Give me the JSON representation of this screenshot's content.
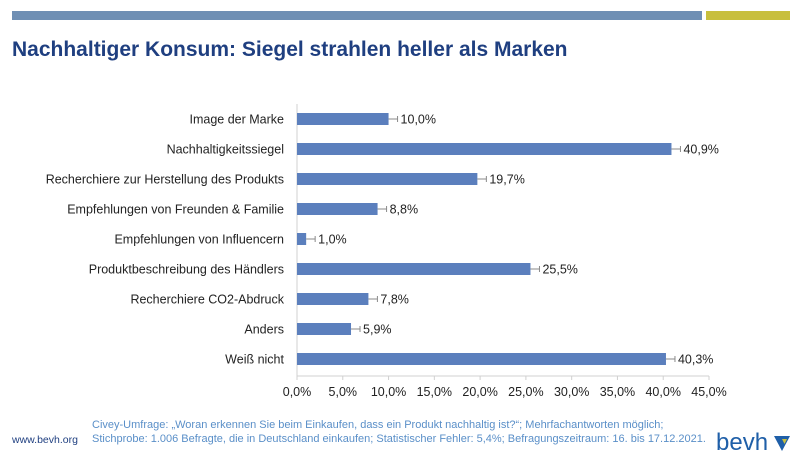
{
  "page": {
    "title": "Nachhaltiger Konsum: Siegel strahlen heller als Marken",
    "footnote_line1": "Civey-Umfrage: „Woran erkennen Sie beim Einkaufen, dass ein Produkt nachhaltig ist?“; Mehrfachantworten möglich;",
    "footnote_line2": "Stichprobe: 1.006 Befragte, die in Deutschland einkaufen; Statistischer Fehler: 5,4%; Befragungszeitraum: 16. bis 17.12.2021.",
    "website": "www.bevh.org",
    "logo_text": "bevh",
    "colors": {
      "accent_blue": "#6f8fb4",
      "accent_yellow": "#c8bf3e",
      "title": "#1f3f80",
      "footnote": "#5a8fc8"
    }
  },
  "chart_data": {
    "type": "bar",
    "orientation": "horizontal",
    "categories": [
      "Image der Marke",
      "Nachhaltigkeitssiegel",
      "Recherchiere zur Herstellung des Produkts",
      "Empfehlungen von Freunden & Familie",
      "Empfehlungen von Influencern",
      "Produktbeschreibung des Händlers",
      "Recherchiere CO2-Abdruck",
      "Anders",
      "Weiß nicht"
    ],
    "values": [
      10.0,
      40.9,
      19.7,
      8.8,
      1.0,
      25.5,
      7.8,
      5.9,
      40.3
    ],
    "value_labels": [
      "10,0%",
      "40,9%",
      "19,7%",
      "8,8%",
      "1,0%",
      "25,5%",
      "7,8%",
      "5,9%",
      "40,3%"
    ],
    "xlim": [
      0,
      45
    ],
    "xticks": [
      0,
      5,
      10,
      15,
      20,
      25,
      30,
      35,
      40,
      45
    ],
    "xtick_labels": [
      "0,0%",
      "5,0%",
      "10,0%",
      "15,0%",
      "20,0%",
      "25,0%",
      "30,0%",
      "35,0%",
      "40,0%",
      "45,0%"
    ],
    "bar_color": "#5b7fbd",
    "grid": false,
    "legend": "none"
  }
}
